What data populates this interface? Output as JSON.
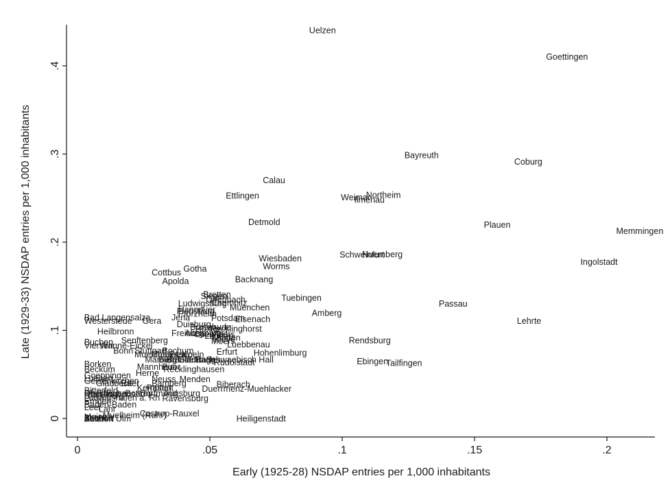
{
  "chart_data": {
    "type": "scatter",
    "marker": "label",
    "title": "",
    "xlabel": "Early (1925-28) NSDAP entries per 1,000 inhabitants",
    "ylabel": "Late (1929-33) NSDAP entries per 1,000 inhabitants",
    "xlim": [
      -0.004,
      0.22
    ],
    "ylim": [
      -0.01,
      0.455
    ],
    "xticks": [
      0,
      0.05,
      0.1,
      0.15,
      0.2
    ],
    "xtick_labels": [
      "0",
      ".05",
      ".1",
      ".15",
      ".2"
    ],
    "yticks": [
      0,
      0.1,
      0.2,
      0.3,
      0.4
    ],
    "ytick_labels": [
      "0",
      ".1",
      ".2",
      ".3",
      ".4"
    ],
    "grid": false,
    "points": [
      {
        "label": "Uelzen",
        "x": 0.0875,
        "y": 0.44
      },
      {
        "label": "Goettingen",
        "x": 0.177,
        "y": 0.41
      },
      {
        "label": "Bayreuth",
        "x": 0.1235,
        "y": 0.2985
      },
      {
        "label": "Coburg",
        "x": 0.165,
        "y": 0.291
      },
      {
        "label": "Calau",
        "x": 0.07,
        "y": 0.27
      },
      {
        "label": "Ettlingen",
        "x": 0.056,
        "y": 0.2525
      },
      {
        "label": "Northeim",
        "x": 0.109,
        "y": 0.2535
      },
      {
        "label": "Weimar",
        "x": 0.0995,
        "y": 0.2505
      },
      {
        "label": "Ilmenau",
        "x": 0.1045,
        "y": 0.248
      },
      {
        "label": "Detmold",
        "x": 0.0645,
        "y": 0.2225
      },
      {
        "label": "Plauen",
        "x": 0.1535,
        "y": 0.2195
      },
      {
        "label": "Memmingen",
        "x": 0.2035,
        "y": 0.2125
      },
      {
        "label": "Nuernberg",
        "x": 0.1075,
        "y": 0.186
      },
      {
        "label": "Schweinfurt",
        "x": 0.099,
        "y": 0.1855
      },
      {
        "label": "Wiesbaden",
        "x": 0.0685,
        "y": 0.1815
      },
      {
        "label": "Ingolstadt",
        "x": 0.19,
        "y": 0.1775
      },
      {
        "label": "Worms",
        "x": 0.07,
        "y": 0.1725
      },
      {
        "label": "Gotha",
        "x": 0.04,
        "y": 0.1695
      },
      {
        "label": "Cottbus",
        "x": 0.028,
        "y": 0.1655
      },
      {
        "label": "Backnang",
        "x": 0.0595,
        "y": 0.1575
      },
      {
        "label": "Apolda",
        "x": 0.032,
        "y": 0.1555
      },
      {
        "label": "Bretten",
        "x": 0.0475,
        "y": 0.1405
      },
      {
        "label": "Siegen",
        "x": 0.0465,
        "y": 0.1385
      },
      {
        "label": "Tuebingen",
        "x": 0.077,
        "y": 0.1365
      },
      {
        "label": "Offenbach",
        "x": 0.0485,
        "y": 0.1345
      },
      {
        "label": "Chemnitz",
        "x": 0.0505,
        "y": 0.131
      },
      {
        "label": "Ludwigsburg",
        "x": 0.038,
        "y": 0.1305
      },
      {
        "label": "Passau",
        "x": 0.1365,
        "y": 0.13
      },
      {
        "label": "Muenchen",
        "x": 0.0575,
        "y": 0.1255
      },
      {
        "label": "Hannover",
        "x": 0.038,
        "y": 0.1235
      },
      {
        "label": "Flensburg",
        "x": 0.0375,
        "y": 0.1215
      },
      {
        "label": "Amberg",
        "x": 0.0885,
        "y": 0.1195
      },
      {
        "label": "Pforzheim",
        "x": 0.038,
        "y": 0.1185
      },
      {
        "label": "Jena",
        "x": 0.0355,
        "y": 0.1145
      },
      {
        "label": "Potsdam",
        "x": 0.0505,
        "y": 0.1135
      },
      {
        "label": "Eisenach",
        "x": 0.0595,
        "y": 0.1125
      },
      {
        "label": "Bad Langensalza",
        "x": 0.0025,
        "y": 0.1145
      },
      {
        "label": "Westerstede",
        "x": 0.0025,
        "y": 0.1105
      },
      {
        "label": "Gera",
        "x": 0.0245,
        "y": 0.1105
      },
      {
        "label": "Lehrte",
        "x": 0.166,
        "y": 0.1105
      },
      {
        "label": "Duisburg",
        "x": 0.0375,
        "y": 0.1065
      },
      {
        "label": "Buxtehude",
        "x": 0.0425,
        "y": 0.1035
      },
      {
        "label": "Hoxter",
        "x": 0.0445,
        "y": 0.1015
      },
      {
        "label": "Recklinghorst",
        "x": 0.05,
        "y": 0.1015
      },
      {
        "label": "Heilbronn",
        "x": 0.0075,
        "y": 0.0985
      },
      {
        "label": "Freiburg",
        "x": 0.0355,
        "y": 0.0965
      },
      {
        "label": "Altenburg",
        "x": 0.0405,
        "y": 0.0965
      },
      {
        "label": "Coesfeld",
        "x": 0.044,
        "y": 0.0955
      },
      {
        "label": "Moers",
        "x": 0.0505,
        "y": 0.0955
      },
      {
        "label": "Landau",
        "x": 0.048,
        "y": 0.0935
      },
      {
        "label": "Minden",
        "x": 0.051,
        "y": 0.0915
      },
      {
        "label": "Kleve",
        "x": 0.0515,
        "y": 0.0895
      },
      {
        "label": "Moers",
        "x": 0.0505,
        "y": 0.0875
      },
      {
        "label": "Senftenberg",
        "x": 0.0165,
        "y": 0.0885
      },
      {
        "label": "Rendsburg",
        "x": 0.1025,
        "y": 0.0885
      },
      {
        "label": "Buchen",
        "x": 0.0025,
        "y": 0.0865
      },
      {
        "label": "Viersen",
        "x": 0.0025,
        "y": 0.0825
      },
      {
        "label": "Wanne-Eickel",
        "x": 0.0085,
        "y": 0.0825
      },
      {
        "label": "Luebbenau",
        "x": 0.0565,
        "y": 0.0835
      },
      {
        "label": "Bonn",
        "x": 0.0135,
        "y": 0.0765
      },
      {
        "label": "Stuttgart",
        "x": 0.0215,
        "y": 0.0765
      },
      {
        "label": "Bochum",
        "x": 0.032,
        "y": 0.0765
      },
      {
        "label": "Erfurt",
        "x": 0.0525,
        "y": 0.0755
      },
      {
        "label": "Hohenlimburg",
        "x": 0.0665,
        "y": 0.0745
      },
      {
        "label": "Muehlhausen",
        "x": 0.0215,
        "y": 0.0725
      },
      {
        "label": "Cassel",
        "x": 0.028,
        "y": 0.0725
      },
      {
        "label": "Essen",
        "x": 0.0345,
        "y": 0.0725
      },
      {
        "label": "Koeln",
        "x": 0.0395,
        "y": 0.0725
      },
      {
        "label": "Ebingen",
        "x": 0.1055,
        "y": 0.0645
      },
      {
        "label": "Tailfingen",
        "x": 0.1165,
        "y": 0.0625
      },
      {
        "label": "Marburg",
        "x": 0.0255,
        "y": 0.0665
      },
      {
        "label": "Bielefeld",
        "x": 0.0305,
        "y": 0.0665
      },
      {
        "label": "Brandenburg",
        "x": 0.0335,
        "y": 0.0665
      },
      {
        "label": "Gladbach",
        "x": 0.038,
        "y": 0.0665
      },
      {
        "label": "Hagen",
        "x": 0.0445,
        "y": 0.0665
      },
      {
        "label": "Schwaebisch Hall",
        "x": 0.0485,
        "y": 0.0665
      },
      {
        "label": "Rudolstadt",
        "x": 0.0515,
        "y": 0.0635
      },
      {
        "label": "Borken",
        "x": 0.0025,
        "y": 0.0615
      },
      {
        "label": "Mannheim",
        "x": 0.0225,
        "y": 0.0585
      },
      {
        "label": "Buer",
        "x": 0.032,
        "y": 0.0585
      },
      {
        "label": "Recklinghausen",
        "x": 0.0325,
        "y": 0.0555
      },
      {
        "label": "Beckum",
        "x": 0.0025,
        "y": 0.0555
      },
      {
        "label": "Herne",
        "x": 0.022,
        "y": 0.0515
      },
      {
        "label": "Goeppingen",
        "x": 0.0025,
        "y": 0.0485
      },
      {
        "label": "Neuss",
        "x": 0.028,
        "y": 0.0445
      },
      {
        "label": "Menden",
        "x": 0.0385,
        "y": 0.0445
      },
      {
        "label": "Luenen",
        "x": 0.0025,
        "y": 0.0455
      },
      {
        "label": "Gelsenkirchen",
        "x": 0.0025,
        "y": 0.0425
      },
      {
        "label": "Gladbeck",
        "x": 0.007,
        "y": 0.0395
      },
      {
        "label": "Buer",
        "x": 0.0165,
        "y": 0.0395
      },
      {
        "label": "Bamberg",
        "x": 0.028,
        "y": 0.0395
      },
      {
        "label": "Biberach",
        "x": 0.0525,
        "y": 0.0385
      },
      {
        "label": "Kempten",
        "x": 0.0225,
        "y": 0.0345
      },
      {
        "label": "Rastatt",
        "x": 0.026,
        "y": 0.0345
      },
      {
        "label": "Duerrmenz-Muehlacker",
        "x": 0.047,
        "y": 0.0335
      },
      {
        "label": "Bitterfeld",
        "x": 0.0025,
        "y": 0.0315
      },
      {
        "label": "Oberhausen",
        "x": 0.0025,
        "y": 0.0285
      },
      {
        "label": "Recklinghausen",
        "x": 0.0025,
        "y": 0.0275
      },
      {
        "label": "Bottrop",
        "x": 0.018,
        "y": 0.0285
      },
      {
        "label": "Dortmund",
        "x": 0.0235,
        "y": 0.0285
      },
      {
        "label": "Augsburg",
        "x": 0.0325,
        "y": 0.0285
      },
      {
        "label": "Rheinberg",
        "x": 0.0025,
        "y": 0.0255
      },
      {
        "label": "Ludwigshafen a. Rh",
        "x": 0.0025,
        "y": 0.0235
      },
      {
        "label": "Ravensburg",
        "x": 0.032,
        "y": 0.0225
      },
      {
        "label": "Emden",
        "x": 0.0025,
        "y": 0.0195
      },
      {
        "label": "Baden-Baden",
        "x": 0.0025,
        "y": 0.0155
      },
      {
        "label": "Leer",
        "x": 0.0025,
        "y": 0.0125
      },
      {
        "label": "Lahr",
        "x": 0.008,
        "y": 0.0105
      },
      {
        "label": "Castrop-Rauxel",
        "x": 0.0235,
        "y": 0.0055
      },
      {
        "label": "Muelheim (Ruhr)",
        "x": 0.0095,
        "y": 0.0035
      },
      {
        "label": "Mainz",
        "x": 0.0025,
        "y": 0.0015
      },
      {
        "label": "Bocholt",
        "x": 0.0025,
        "y": 0.0005
      },
      {
        "label": "Aachen",
        "x": 0.0025,
        "y": -0.0005
      },
      {
        "label": "Bendorf",
        "x": 0.0025,
        "y": -0.0005
      },
      {
        "label": "Ahlen",
        "x": 0.0025,
        "y": -0.0005
      },
      {
        "label": "Ulm",
        "x": 0.0145,
        "y": -0.0005
      },
      {
        "label": "Heiligenstadt",
        "x": 0.06,
        "y": -0.0005
      }
    ]
  }
}
